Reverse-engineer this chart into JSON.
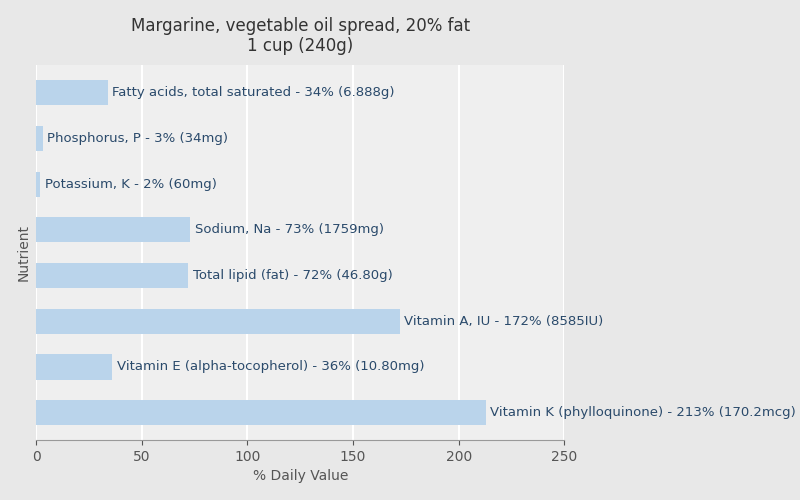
{
  "title": "Margarine, vegetable oil spread, 20% fat\n1 cup (240g)",
  "xlabel": "% Daily Value",
  "ylabel": "Nutrient",
  "background_color": "#e8e8e8",
  "plot_background_color": "#efefef",
  "bar_color": "#bad4eb",
  "label_color": "#2a4a6b",
  "nutrients": [
    "Fatty acids, total saturated - 34% (6.888g)",
    "Phosphorus, P - 3% (34mg)",
    "Potassium, K - 2% (60mg)",
    "Sodium, Na - 73% (1759mg)",
    "Total lipid (fat) - 72% (46.80g)",
    "Vitamin A, IU - 172% (8585IU)",
    "Vitamin E (alpha-tocopherol) - 36% (10.80mg)",
    "Vitamin K (phylloquinone) - 213% (170.2mcg)"
  ],
  "values": [
    34,
    3,
    2,
    73,
    72,
    172,
    36,
    213
  ],
  "xlim": [
    0,
    250
  ],
  "xticks": [
    0,
    50,
    100,
    150,
    200,
    250
  ],
  "grid_color": "#ffffff",
  "title_fontsize": 12,
  "label_fontsize": 9.5,
  "axis_label_fontsize": 10
}
